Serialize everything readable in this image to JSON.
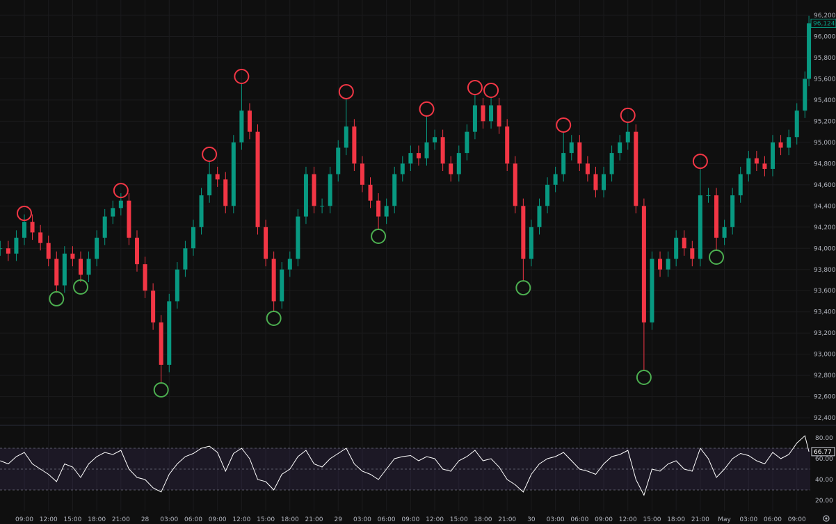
{
  "chart_data": [
    {
      "type": "candlestick",
      "title": "",
      "y_ticks": [
        "92,400",
        "92,600",
        "92,800",
        "93,000",
        "93,200",
        "93,400",
        "93,600",
        "93,800",
        "94,000",
        "94,200",
        "94,400",
        "94,600",
        "94,800",
        "95,000",
        "95,200",
        "95,400",
        "95,600",
        "95,800",
        "96,000",
        "96,200"
      ],
      "ylim": [
        92300,
        96330
      ],
      "x_ticks": [
        {
          "t": "04-27 09:00",
          "label": "09:00"
        },
        {
          "t": "04-27 12:00",
          "label": "12:00"
        },
        {
          "t": "04-27 15:00",
          "label": "15:00"
        },
        {
          "t": "04-27 18:00",
          "label": "18:00"
        },
        {
          "t": "04-27 21:00",
          "label": "21:00"
        },
        {
          "t": "04-28 00:00",
          "label": "28"
        },
        {
          "t": "04-28 03:00",
          "label": "03:00"
        },
        {
          "t": "04-28 06:00",
          "label": "06:00"
        },
        {
          "t": "04-28 09:00",
          "label": "09:00"
        },
        {
          "t": "04-28 12:00",
          "label": "12:00"
        },
        {
          "t": "04-28 15:00",
          "label": "15:00"
        },
        {
          "t": "04-28 18:00",
          "label": "18:00"
        },
        {
          "t": "04-28 21:00",
          "label": "21:00"
        },
        {
          "t": "04-29 00:00",
          "label": "29"
        },
        {
          "t": "04-29 03:00",
          "label": "03:00"
        },
        {
          "t": "04-29 06:00",
          "label": "06:00"
        },
        {
          "t": "04-29 09:00",
          "label": "09:00"
        },
        {
          "t": "04-29 12:00",
          "label": "12:00"
        },
        {
          "t": "04-29 15:00",
          "label": "15:00"
        },
        {
          "t": "04-29 18:00",
          "label": "18:00"
        },
        {
          "t": "04-29 21:00",
          "label": "21:00"
        },
        {
          "t": "04-30 00:00",
          "label": "30"
        },
        {
          "t": "04-30 03:00",
          "label": "03:00"
        },
        {
          "t": "04-30 06:00",
          "label": "06:00"
        },
        {
          "t": "04-30 09:00",
          "label": "09:00"
        },
        {
          "t": "04-30 12:00",
          "label": "12:00"
        },
        {
          "t": "04-30 15:00",
          "label": "15:00"
        },
        {
          "t": "04-30 18:00",
          "label": "18:00"
        },
        {
          "t": "04-30 21:00",
          "label": "21:00"
        },
        {
          "t": "05-01 00:00",
          "label": "May"
        },
        {
          "t": "05-01 03:00",
          "label": "03:00"
        },
        {
          "t": "05-01 06:00",
          "label": "06:00"
        },
        {
          "t": "05-01 09:00",
          "label": "09:00"
        }
      ],
      "last_price": "96,124.9",
      "colors": {
        "up": "#089981",
        "down": "#f23645",
        "swing_high": "#f23645",
        "swing_low": "#4caf50",
        "background": "#0f0f0f",
        "rsi_line": "#ffffff",
        "rsi_band": "#7e57c2"
      },
      "series": [
        [
          "04-27 06:00",
          94000,
          58
        ],
        [
          "04-27 07:00",
          93950,
          55
        ],
        [
          "04-27 08:00",
          94100,
          62
        ],
        [
          "04-27 09:00",
          94250,
          66
        ],
        [
          "04-27 10:00",
          94150,
          55
        ],
        [
          "04-27 11:00",
          94050,
          50
        ],
        [
          "04-27 12:00",
          93900,
          45
        ],
        [
          "04-27 13:00",
          93650,
          38
        ],
        [
          "04-27 14:00",
          93950,
          55
        ],
        [
          "04-27 15:00",
          93900,
          52
        ],
        [
          "04-27 16:00",
          93750,
          42
        ],
        [
          "04-27 17:00",
          93900,
          55
        ],
        [
          "04-27 18:00",
          94100,
          62
        ],
        [
          "04-27 19:00",
          94300,
          66
        ],
        [
          "04-27 20:00",
          94380,
          64
        ],
        [
          "04-27 21:00",
          94450,
          68
        ],
        [
          "04-27 22:00",
          94100,
          50
        ],
        [
          "04-27 23:00",
          93850,
          42
        ],
        [
          "04-28 00:00",
          93600,
          40
        ],
        [
          "04-28 01:00",
          93300,
          32
        ],
        [
          "04-28 02:00",
          92900,
          28
        ],
        [
          "04-28 03:00",
          93500,
          45
        ],
        [
          "04-28 04:00",
          93800,
          55
        ],
        [
          "04-28 05:00",
          94000,
          62
        ],
        [
          "04-28 06:00",
          94200,
          65
        ],
        [
          "04-28 07:00",
          94500,
          70
        ],
        [
          "04-28 08:00",
          94700,
          72
        ],
        [
          "04-28 09:00",
          94650,
          66
        ],
        [
          "04-28 10:00",
          94400,
          48
        ],
        [
          "04-28 11:00",
          95000,
          65
        ],
        [
          "04-28 12:00",
          95300,
          70
        ],
        [
          "04-28 13:00",
          95100,
          60
        ],
        [
          "04-28 14:00",
          94200,
          40
        ],
        [
          "04-28 15:00",
          93900,
          38
        ],
        [
          "04-28 16:00",
          93500,
          30
        ],
        [
          "04-28 17:00",
          93800,
          45
        ],
        [
          "04-28 18:00",
          93900,
          50
        ],
        [
          "04-28 19:00",
          94300,
          62
        ],
        [
          "04-28 20:00",
          94700,
          68
        ],
        [
          "04-28 21:00",
          94400,
          55
        ],
        [
          "04-28 22:00",
          94400,
          52
        ],
        [
          "04-28 23:00",
          94700,
          60
        ],
        [
          "04-29 00:00",
          94950,
          65
        ],
        [
          "04-29 01:00",
          95150,
          70
        ],
        [
          "04-29 02:00",
          94800,
          55
        ],
        [
          "04-29 03:00",
          94600,
          48
        ],
        [
          "04-29 04:00",
          94450,
          45
        ],
        [
          "04-29 05:00",
          94300,
          40
        ],
        [
          "04-29 06:00",
          94400,
          50
        ],
        [
          "04-29 07:00",
          94700,
          60
        ],
        [
          "04-29 08:00",
          94800,
          62
        ],
        [
          "04-29 09:00",
          94900,
          63
        ],
        [
          "04-29 10:00",
          94850,
          58
        ],
        [
          "04-29 11:00",
          95000,
          62
        ],
        [
          "04-29 12:00",
          95050,
          60
        ],
        [
          "04-29 13:00",
          94800,
          50
        ],
        [
          "04-29 14:00",
          94700,
          48
        ],
        [
          "04-29 15:00",
          94900,
          58
        ],
        [
          "04-29 16:00",
          95100,
          62
        ],
        [
          "04-29 17:00",
          95350,
          68
        ],
        [
          "04-29 18:00",
          95200,
          58
        ],
        [
          "04-29 19:00",
          95350,
          60
        ],
        [
          "04-29 20:00",
          95150,
          52
        ],
        [
          "04-29 21:00",
          94800,
          40
        ],
        [
          "04-29 22:00",
          94400,
          35
        ],
        [
          "04-29 23:00",
          93900,
          28
        ],
        [
          "04-30 00:00",
          94200,
          45
        ],
        [
          "04-30 01:00",
          94400,
          55
        ],
        [
          "04-30 02:00",
          94600,
          60
        ],
        [
          "04-30 03:00",
          94700,
          62
        ],
        [
          "04-30 04:00",
          94900,
          66
        ],
        [
          "04-30 05:00",
          95000,
          58
        ],
        [
          "04-30 06:00",
          94800,
          50
        ],
        [
          "04-30 07:00",
          94700,
          48
        ],
        [
          "04-30 08:00",
          94550,
          45
        ],
        [
          "04-30 09:00",
          94700,
          55
        ],
        [
          "04-30 10:00",
          94900,
          62
        ],
        [
          "04-30 11:00",
          95000,
          64
        ],
        [
          "04-30 12:00",
          95100,
          68
        ],
        [
          "04-30 13:00",
          94400,
          40
        ],
        [
          "04-30 14:00",
          93300,
          25
        ],
        [
          "04-30 15:00",
          93900,
          50
        ],
        [
          "04-30 16:00",
          93800,
          48
        ],
        [
          "04-30 17:00",
          93900,
          55
        ],
        [
          "04-30 18:00",
          94100,
          58
        ],
        [
          "04-30 19:00",
          94000,
          50
        ],
        [
          "04-30 20:00",
          93900,
          48
        ],
        [
          "04-30 21:00",
          94500,
          70
        ],
        [
          "04-30 22:00",
          94500,
          60
        ],
        [
          "04-30 23:00",
          94100,
          42
        ],
        [
          "05-01 00:00",
          94200,
          50
        ],
        [
          "05-01 01:00",
          94500,
          60
        ],
        [
          "05-01 02:00",
          94700,
          65
        ],
        [
          "05-01 03:00",
          94850,
          63
        ],
        [
          "05-01 04:00",
          94800,
          58
        ],
        [
          "05-01 05:00",
          94750,
          55
        ],
        [
          "05-01 06:00",
          95000,
          66
        ],
        [
          "05-01 07:00",
          94950,
          60
        ],
        [
          "05-01 08:00",
          95050,
          64
        ],
        [
          "05-01 09:00",
          95300,
          75
        ],
        [
          "05-01 10:00",
          95600,
          82
        ],
        [
          "05-01 10:30",
          96124.9,
          66.77
        ]
      ],
      "swing_markers": [
        {
          "t": "04-27 09:00",
          "price": 94264,
          "type": "high"
        },
        {
          "t": "04-27 13:00",
          "price": 93589,
          "type": "low"
        },
        {
          "t": "04-27 16:00",
          "price": 93700,
          "type": "low"
        },
        {
          "t": "04-27 21:00",
          "price": 94480,
          "type": "high"
        },
        {
          "t": "04-28 02:00",
          "price": 92729,
          "type": "low"
        },
        {
          "t": "04-28 08:00",
          "price": 94822,
          "type": "high"
        },
        {
          "t": "04-28 12:00",
          "price": 95557,
          "type": "high"
        },
        {
          "t": "04-28 16:00",
          "price": 93405,
          "type": "low"
        },
        {
          "t": "04-29 01:00",
          "price": 95413,
          "type": "high"
        },
        {
          "t": "04-29 05:00",
          "price": 94179,
          "type": "low"
        },
        {
          "t": "04-29 11:00",
          "price": 95249,
          "type": "high"
        },
        {
          "t": "04-29 17:00",
          "price": 95452,
          "type": "high"
        },
        {
          "t": "04-29 19:00",
          "price": 95426,
          "type": "high"
        },
        {
          "t": "04-29 23:00",
          "price": 93693,
          "type": "low"
        },
        {
          "t": "04-30 04:00",
          "price": 95098,
          "type": "high"
        },
        {
          "t": "04-30 12:00",
          "price": 95190,
          "type": "high"
        },
        {
          "t": "04-30 14:00",
          "price": 92847,
          "type": "low"
        },
        {
          "t": "04-30 21:00",
          "price": 94756,
          "type": "high"
        },
        {
          "t": "04-30 23:00",
          "price": 93982,
          "type": "low"
        }
      ]
    },
    {
      "type": "line",
      "indicator": "RSI",
      "y_ticks": [
        "20.00",
        "40.00",
        "60.00",
        "80.00"
      ],
      "ylim": [
        13,
        87
      ],
      "band": [
        30,
        70
      ],
      "last_value": "66.77"
    }
  ]
}
